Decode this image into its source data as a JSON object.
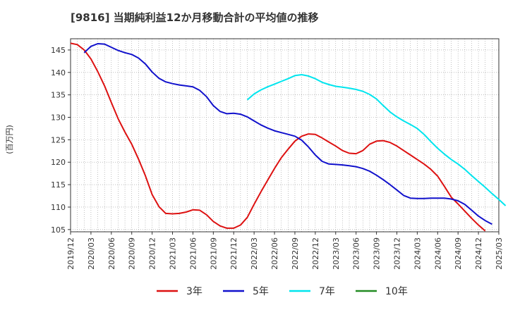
{
  "chart_data": {
    "type": "line",
    "title": "[9816]  当期純利益12か月移動合計の平均値の推移",
    "ylabel": "(百万円)",
    "xlabel": "",
    "ylim": [
      104.5,
      147.5
    ],
    "yticks": [
      105,
      110,
      115,
      120,
      125,
      130,
      135,
      140,
      145
    ],
    "x_ticks": [
      "2019/12",
      "2020/03",
      "2020/06",
      "2020/09",
      "2020/12",
      "2021/03",
      "2021/06",
      "2021/09",
      "2021/12",
      "2022/03",
      "2022/06",
      "2022/09",
      "2022/12",
      "2023/03",
      "2023/06",
      "2023/09",
      "2023/12",
      "2024/03",
      "2024/06",
      "2024/09",
      "2024/12",
      "2025/03"
    ],
    "grid": true,
    "legend_position": "bottom",
    "series": [
      {
        "name": "3年",
        "color": "#dd1111",
        "start": "2019/12",
        "values": [
          146.5,
          146.2,
          145.0,
          143.0,
          140.2,
          137.0,
          133.3,
          129.7,
          126.7,
          124.0,
          120.7,
          117.0,
          112.8,
          110.1,
          108.6,
          108.5,
          108.6,
          108.9,
          109.4,
          109.3,
          108.3,
          106.8,
          105.8,
          105.3,
          105.3,
          106.0,
          107.7,
          110.6,
          113.4,
          116.0,
          118.6,
          121.0,
          122.9,
          124.7,
          125.8,
          126.3,
          126.2,
          125.4,
          124.5,
          123.6,
          122.6,
          122.0,
          121.9,
          122.6,
          124.0,
          124.7,
          124.8,
          124.4,
          123.6,
          122.6,
          121.6,
          120.6,
          119.6,
          118.4,
          116.9,
          114.6,
          112.2,
          110.7,
          109.1,
          107.5,
          106.0,
          104.7
        ]
      },
      {
        "name": "5年",
        "color": "#1111cc",
        "start": "2020/02",
        "values": [
          144.4,
          145.8,
          146.4,
          146.3,
          145.6,
          144.9,
          144.4,
          144.0,
          143.2,
          141.9,
          140.1,
          138.7,
          137.9,
          137.5,
          137.2,
          137.0,
          136.8,
          136.0,
          134.6,
          132.6,
          131.3,
          130.8,
          130.9,
          130.7,
          130.1,
          129.2,
          128.3,
          127.6,
          127.0,
          126.6,
          126.2,
          125.8,
          124.9,
          123.4,
          121.6,
          120.2,
          119.6,
          119.5,
          119.4,
          119.2,
          119.0,
          118.6,
          118.0,
          117.1,
          116.1,
          115.0,
          113.8,
          112.6,
          112.0,
          111.9,
          111.9,
          112.0,
          112.0,
          112.0,
          111.8,
          111.4,
          110.6,
          109.3,
          108.0,
          107.0,
          106.2
        ]
      },
      {
        "name": "7年",
        "color": "#00e5ee",
        "start": "2022/02",
        "values": [
          133.9,
          135.2,
          136.1,
          136.8,
          137.4,
          138.0,
          138.6,
          139.3,
          139.5,
          139.2,
          138.6,
          137.8,
          137.3,
          136.9,
          136.7,
          136.5,
          136.2,
          135.8,
          135.1,
          134.1,
          132.6,
          131.2,
          130.1,
          129.2,
          128.4,
          127.5,
          126.2,
          124.6,
          123.1,
          121.8,
          120.6,
          119.6,
          118.4,
          117.0,
          115.7,
          114.4,
          113.0,
          111.7,
          110.3
        ]
      },
      {
        "name": "10年",
        "color": "#228b22",
        "start": "2019/12",
        "values": []
      }
    ]
  }
}
